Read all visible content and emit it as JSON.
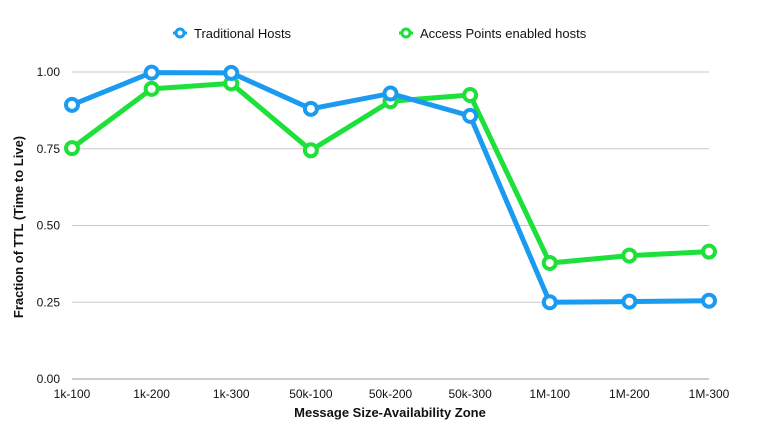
{
  "chart_data": {
    "type": "line",
    "title": "",
    "xlabel": "Message Size-Availability Zone",
    "ylabel": "Fraction of TTL (Time to Live)",
    "categories": [
      "1k-100",
      "1k-200",
      "1k-300",
      "50k-100",
      "50k-200",
      "50k-300",
      "1M-100",
      "1M-200",
      "1M-300"
    ],
    "ylim": [
      0,
      1
    ],
    "yticks": [
      "0.00",
      "0.25",
      "0.50",
      "0.75",
      "1.00"
    ],
    "grid": true,
    "legend_position": "top",
    "series": [
      {
        "name": "Traditional Hosts",
        "color": "#1a9bf0",
        "values": [
          0.893,
          0.998,
          0.997,
          0.88,
          0.93,
          0.857,
          0.25,
          0.252,
          0.255
        ]
      },
      {
        "name": "Access Points enabled hosts",
        "color": "#1ee03a",
        "values": [
          0.752,
          0.945,
          0.963,
          0.745,
          0.905,
          0.925,
          0.378,
          0.402,
          0.415
        ]
      }
    ]
  }
}
